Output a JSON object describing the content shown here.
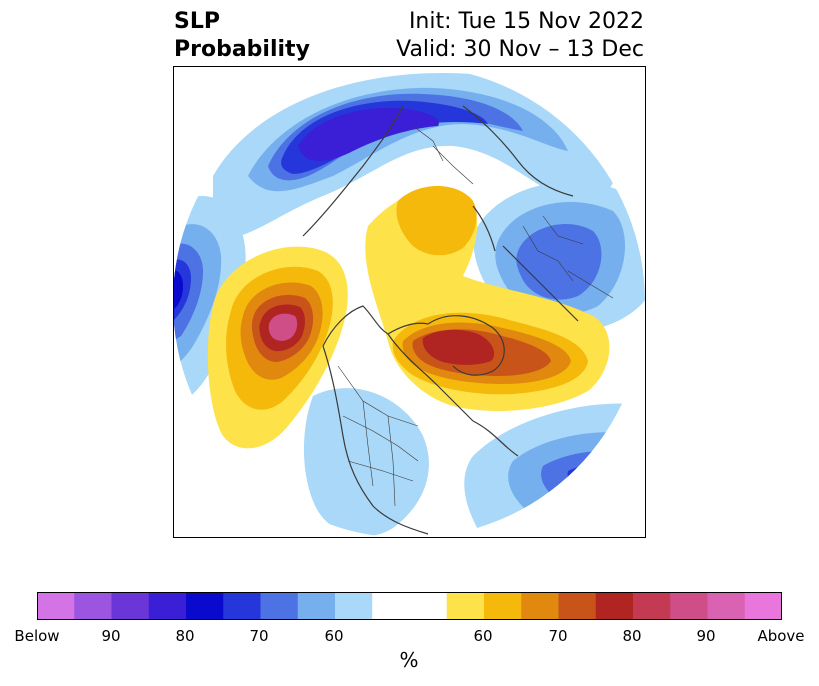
{
  "header": {
    "variable": "SLP",
    "product": "Probability",
    "init": "Init: Tue 15 Nov 2022",
    "valid": "Valid: 30 Nov – 13 Dec"
  },
  "colorbar": {
    "unit": "%",
    "labels": [
      "Below",
      "90",
      "80",
      "70",
      "60",
      "60",
      "70",
      "80",
      "90",
      "Above"
    ],
    "below_colors": [
      "#d473e6",
      "#9c55e0",
      "#6a36d8",
      "#3a1fd6",
      "#0a0acf",
      "#2537db",
      "#4c72e4",
      "#76afee",
      "#a9d8f8"
    ],
    "neutral_color": "#ffffff",
    "above_colors": [
      "#fde24a",
      "#f5b90c",
      "#e0890e",
      "#c9541a",
      "#b02422",
      "#c33a52",
      "#cf4e88",
      "#da62b2",
      "#e876dd"
    ]
  },
  "map": {
    "projection": "north polar stereographic",
    "colors": {
      "coast": "#3a3a3a",
      "ocean": "#ffffff"
    }
  }
}
